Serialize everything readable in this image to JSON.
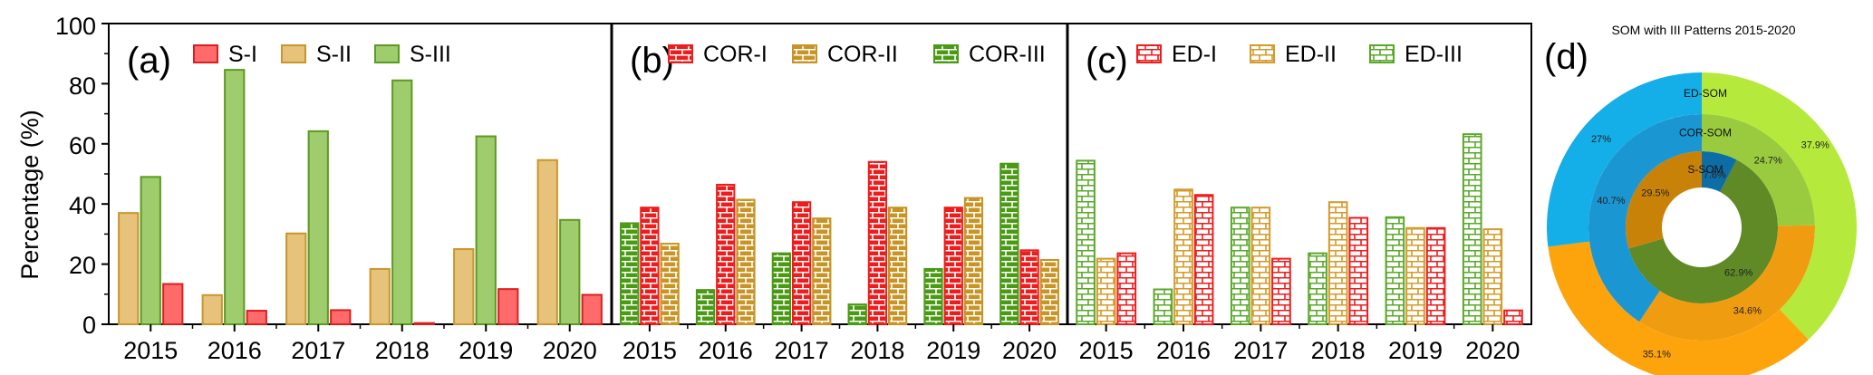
{
  "figure": {
    "ylabel": "Percentage (%)",
    "yticks": [
      "0",
      "20",
      "40",
      "60",
      "80",
      "100"
    ]
  },
  "chart_data": [
    {
      "panel": "(a)",
      "type": "bar",
      "categories": [
        "2015",
        "2016",
        "2017",
        "2018",
        "2019",
        "2020"
      ],
      "series": [
        {
          "name": "S-I",
          "values": [
            13.4,
            4.5,
            4.7,
            0.4,
            11.7,
            9.8
          ],
          "color": "#ff6a6a"
        },
        {
          "name": "S-II",
          "values": [
            37.0,
            9.7,
            30.2,
            18.4,
            25.0,
            54.6
          ],
          "color": "#e6c27a"
        },
        {
          "name": "S-III",
          "values": [
            49.0,
            84.6,
            64.2,
            81.1,
            62.5,
            34.7
          ],
          "color": "#9fcc6c"
        }
      ],
      "bar_order": [
        "S-II",
        "S-III",
        "S-I"
      ],
      "ylim": [
        0,
        100
      ],
      "ylabel": "Percentage (%)",
      "legend": "top"
    },
    {
      "panel": "(b)",
      "type": "bar",
      "pattern": "brick",
      "categories": [
        "2015",
        "2016",
        "2017",
        "2018",
        "2019",
        "2020"
      ],
      "series": [
        {
          "name": "COR-I",
          "values": [
            38.8,
            46.4,
            40.6,
            54.0,
            38.8,
            24.6
          ],
          "color": "#ee1c1c"
        },
        {
          "name": "COR-II",
          "values": [
            26.8,
            41.4,
            35.2,
            38.8,
            42.0,
            21.4
          ],
          "color": "#c89425"
        },
        {
          "name": "COR-III",
          "values": [
            33.6,
            11.4,
            23.6,
            6.6,
            18.4,
            53.4
          ],
          "color": "#4a9a14"
        }
      ],
      "bar_order": [
        "COR-III",
        "COR-I",
        "COR-II"
      ],
      "ylim": [
        0,
        100
      ],
      "legend": "top"
    },
    {
      "panel": "(c)",
      "type": "bar",
      "pattern": "brick-open",
      "categories": [
        "2015",
        "2016",
        "2017",
        "2018",
        "2019",
        "2020"
      ],
      "series": [
        {
          "name": "ED-I",
          "values": [
            23.6,
            43.0,
            21.8,
            35.4,
            32.0,
            4.6
          ],
          "color": "#ee1c1c"
        },
        {
          "name": "ED-II",
          "values": [
            21.8,
            44.8,
            38.8,
            40.6,
            32.0,
            31.6
          ],
          "color": "#d49a2a"
        },
        {
          "name": "ED-III",
          "values": [
            54.4,
            11.6,
            38.8,
            23.6,
            35.6,
            63.2
          ],
          "color": "#5aa82a"
        }
      ],
      "bar_order": [
        "ED-III",
        "ED-II",
        "ED-I"
      ],
      "ylim": [
        0,
        100
      ],
      "legend": "top"
    },
    {
      "panel": "(d)",
      "type": "pie",
      "style": "nested-donut",
      "title": "SOM with III Patterns 2015-2020",
      "rings": [
        {
          "name": "S-SOM",
          "slices": [
            {
              "label": "7.6%",
              "value": 7.6,
              "color": "#0d6ea6"
            },
            {
              "label": "62.9%",
              "value": 62.9,
              "color": "#5f8a26"
            },
            {
              "label": "29.5%",
              "value": 29.5,
              "color": "#c98208"
            }
          ]
        },
        {
          "name": "COR-SOM",
          "slices": [
            {
              "label": "24.7%",
              "value": 24.7,
              "color": "#9acb3f"
            },
            {
              "label": "34.6%",
              "value": 34.6,
              "color": "#f09c10"
            },
            {
              "label": "40.7%",
              "value": 40.7,
              "color": "#1a96d2"
            }
          ]
        },
        {
          "name": "ED-SOM",
          "slices": [
            {
              "label": "37.9%",
              "value": 37.9,
              "color": "#b5ea3c"
            },
            {
              "label": "35.1%",
              "value": 35.1,
              "color": "#fda40d"
            },
            {
              "label": "27%",
              "value": 27.0,
              "color": "#14aee8"
            }
          ]
        }
      ]
    }
  ]
}
